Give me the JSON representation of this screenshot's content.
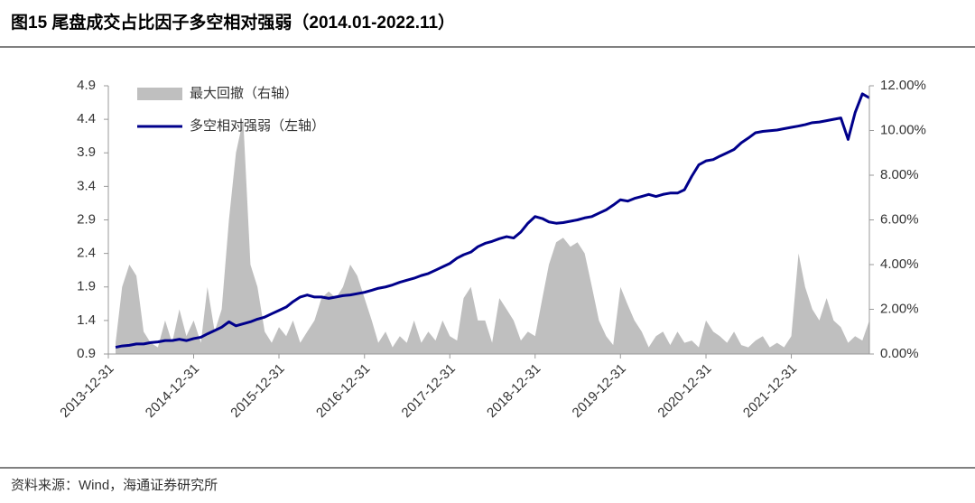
{
  "chart_data": {
    "type": "area-line",
    "title": "图15 尾盘成交占比因子多空相对强弱（2014.01-2022.11）",
    "x": [
      "2014-01-31",
      "2014-02-28",
      "2014-03-31",
      "2014-04-30",
      "2014-05-31",
      "2014-06-30",
      "2014-07-31",
      "2014-08-31",
      "2014-09-30",
      "2014-10-31",
      "2014-11-30",
      "2014-12-31",
      "2015-01-31",
      "2015-02-28",
      "2015-03-31",
      "2015-04-30",
      "2015-05-31",
      "2015-06-30",
      "2015-07-31",
      "2015-08-31",
      "2015-09-30",
      "2015-10-31",
      "2015-11-30",
      "2015-12-31",
      "2016-01-31",
      "2016-02-29",
      "2016-03-31",
      "2016-04-30",
      "2016-05-31",
      "2016-06-30",
      "2016-07-31",
      "2016-08-31",
      "2016-09-30",
      "2016-10-31",
      "2016-11-30",
      "2016-12-31",
      "2017-01-31",
      "2017-02-28",
      "2017-03-31",
      "2017-04-30",
      "2017-05-31",
      "2017-06-30",
      "2017-07-31",
      "2017-08-31",
      "2017-09-30",
      "2017-10-31",
      "2017-11-30",
      "2017-12-31",
      "2018-01-31",
      "2018-02-28",
      "2018-03-31",
      "2018-04-30",
      "2018-05-31",
      "2018-06-30",
      "2018-07-31",
      "2018-08-31",
      "2018-09-30",
      "2018-10-31",
      "2018-11-30",
      "2018-12-31",
      "2019-01-31",
      "2019-02-28",
      "2019-03-31",
      "2019-04-30",
      "2019-05-31",
      "2019-06-30",
      "2019-07-31",
      "2019-08-31",
      "2019-09-30",
      "2019-10-31",
      "2019-11-30",
      "2019-12-31",
      "2020-01-31",
      "2020-02-29",
      "2020-03-31",
      "2020-04-30",
      "2020-05-31",
      "2020-06-30",
      "2020-07-31",
      "2020-08-31",
      "2020-09-30",
      "2020-10-31",
      "2020-11-30",
      "2020-12-31",
      "2021-01-31",
      "2021-02-28",
      "2021-03-31",
      "2021-04-30",
      "2021-05-31",
      "2021-06-30",
      "2021-07-31",
      "2021-08-31",
      "2021-09-30",
      "2021-10-31",
      "2021-11-30",
      "2021-12-31",
      "2022-01-31",
      "2022-02-28",
      "2022-03-31",
      "2022-04-30",
      "2022-05-31",
      "2022-06-30",
      "2022-07-31",
      "2022-08-31",
      "2022-09-30",
      "2022-10-31",
      "2022-11-30"
    ],
    "xlim": [
      "2013-12-31",
      "2022-11-30"
    ],
    "xticks": [
      "2013-12-31",
      "2014-12-31",
      "2015-12-31",
      "2016-12-31",
      "2017-12-31",
      "2018-12-31",
      "2019-12-31",
      "2020-12-31",
      "2021-12-31"
    ],
    "series": [
      {
        "name": "最大回撤（右轴）",
        "type": "area",
        "axis": "y2",
        "color": "#bfbfbf",
        "values": [
          0.5,
          3,
          4,
          3.5,
          1,
          0.5,
          0.3,
          1.5,
          0.5,
          2,
          0.8,
          1.5,
          0.5,
          3,
          1,
          2,
          6,
          9,
          10.5,
          4,
          3,
          1,
          0.5,
          1.2,
          0.8,
          1.5,
          0.5,
          1,
          1.5,
          2.5,
          2.8,
          2.5,
          3,
          4,
          3.5,
          2.5,
          1.5,
          0.5,
          1,
          0.3,
          0.8,
          0.5,
          1.5,
          0.5,
          1,
          0.6,
          1.5,
          0.8,
          0.6,
          2.5,
          3,
          1.5,
          1.5,
          0.5,
          2.5,
          2,
          1.5,
          0.6,
          1,
          0.8,
          2.5,
          4,
          5,
          5.2,
          4.8,
          5,
          4.5,
          3,
          1.5,
          0.8,
          0.4,
          3,
          2.2,
          1.5,
          1,
          0.3,
          0.8,
          1,
          0.4,
          1,
          0.5,
          0.6,
          0.3,
          1.5,
          1,
          0.8,
          0.5,
          1,
          0.4,
          0.3,
          0.6,
          0.8,
          0.3,
          0.5,
          0.3,
          0.8,
          4.5,
          3,
          2,
          1.5,
          2.5,
          1.5,
          1.2,
          0.5,
          0.8,
          0.6,
          1.5
        ]
      },
      {
        "name": "多空相对强弱（左轴）",
        "type": "line",
        "color": "#00008b",
        "values": [
          1.0,
          1.02,
          1.03,
          1.05,
          1.05,
          1.07,
          1.08,
          1.1,
          1.1,
          1.12,
          1.1,
          1.13,
          1.15,
          1.2,
          1.25,
          1.3,
          1.38,
          1.32,
          1.35,
          1.38,
          1.42,
          1.45,
          1.5,
          1.55,
          1.6,
          1.68,
          1.75,
          1.78,
          1.75,
          1.75,
          1.73,
          1.75,
          1.77,
          1.78,
          1.8,
          1.82,
          1.85,
          1.88,
          1.9,
          1.93,
          1.97,
          2.0,
          2.03,
          2.07,
          2.1,
          2.15,
          2.2,
          2.25,
          2.33,
          2.38,
          2.42,
          2.5,
          2.55,
          2.58,
          2.62,
          2.65,
          2.63,
          2.72,
          2.85,
          2.95,
          2.92,
          2.87,
          2.85,
          2.86,
          2.88,
          2.9,
          2.93,
          2.95,
          3.0,
          3.05,
          3.12,
          3.2,
          3.18,
          3.22,
          3.25,
          3.28,
          3.25,
          3.28,
          3.3,
          3.3,
          3.35,
          3.55,
          3.72,
          3.78,
          3.8,
          3.85,
          3.9,
          3.95,
          4.05,
          4.12,
          4.2,
          4.22,
          4.23,
          4.24,
          4.26,
          4.28,
          4.3,
          4.32,
          4.35,
          4.36,
          4.38,
          4.4,
          4.42,
          4.1,
          4.5,
          4.78,
          4.72
        ]
      }
    ],
    "ylim": [
      0.9,
      4.9
    ],
    "yticks": [
      0.9,
      1.4,
      1.9,
      2.4,
      2.9,
      3.4,
      3.9,
      4.4,
      4.9
    ],
    "y2lim": [
      0,
      12
    ],
    "y2ticks": [
      {
        "value": 0,
        "label": "0.00%"
      },
      {
        "value": 2,
        "label": "2.00%"
      },
      {
        "value": 4,
        "label": "4.00%"
      },
      {
        "value": 6,
        "label": "6.00%"
      },
      {
        "value": 8,
        "label": "8.00%"
      },
      {
        "value": 10,
        "label": "10.00%"
      },
      {
        "value": 12,
        "label": "12.00%"
      }
    ],
    "legend": "top-left"
  },
  "source": "资料来源：Wind，海通证券研究所"
}
